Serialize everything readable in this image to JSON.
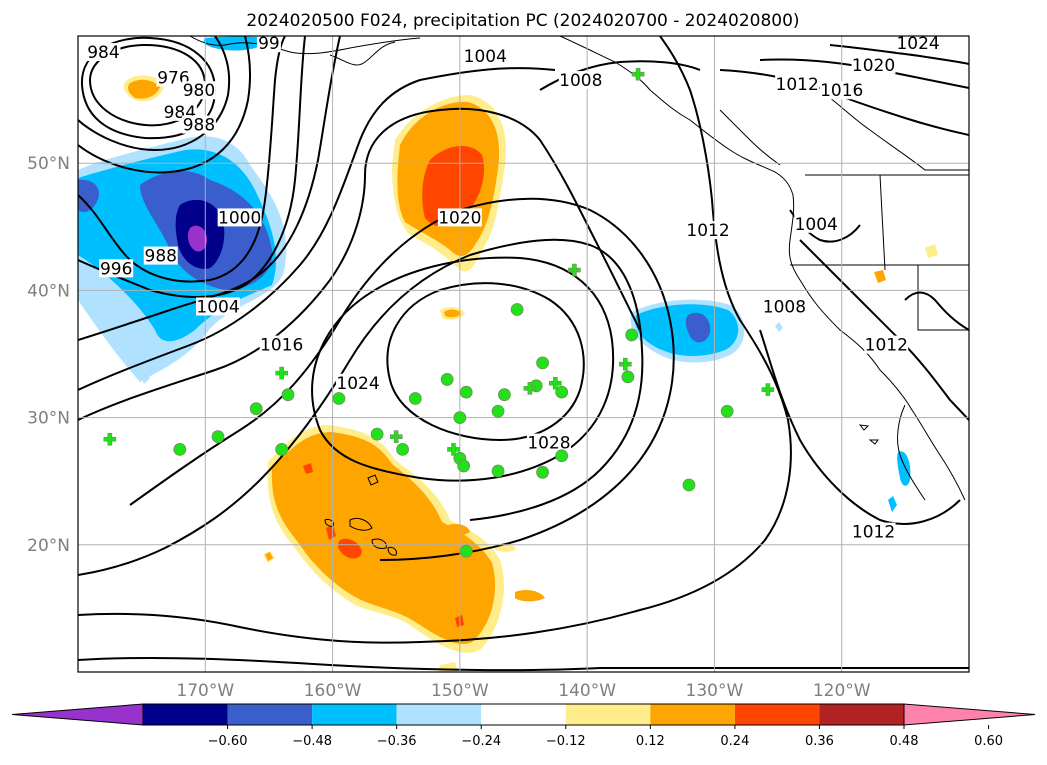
{
  "chart_data": {
    "type": "heatmap",
    "title": "2024020500 F024, precipitation PC (2024020700 - 2024020800)",
    "map": {
      "lon_range": [
        -180,
        -110
      ],
      "lat_range": [
        10,
        60
      ],
      "grid": true,
      "lon_ticks": [
        {
          "value": -170,
          "label": "170°W"
        },
        {
          "value": -160,
          "label": "160°W"
        },
        {
          "value": -150,
          "label": "150°W"
        },
        {
          "value": -140,
          "label": "140°W"
        },
        {
          "value": -130,
          "label": "130°W"
        },
        {
          "value": -120,
          "label": "120°W"
        }
      ],
      "lat_ticks": [
        {
          "value": 50,
          "label": "50°N"
        },
        {
          "value": 40,
          "label": "40°N"
        },
        {
          "value": 30,
          "label": "30°N"
        },
        {
          "value": 20,
          "label": "20°N"
        }
      ]
    },
    "colorbar": {
      "extend": "both",
      "levels": [
        -0.6,
        -0.48,
        -0.36,
        -0.24,
        -0.12,
        0.12,
        0.24,
        0.36,
        0.48,
        0.6
      ],
      "tick_labels": [
        "−0.60",
        "−0.48",
        "−0.36",
        "−0.24",
        "−0.12",
        "0.12",
        "0.24",
        "0.36",
        "0.48",
        "0.60"
      ],
      "colors": [
        "#9932cc",
        "#00008b",
        "#3a5fcd",
        "#00bfff",
        "#b0e2ff",
        "#ffffff",
        "#ffec8b",
        "#ffa500",
        "#ff4500",
        "#b22222",
        "#ff82ab"
      ]
    },
    "isobar_labels": [
      {
        "text": "984",
        "lon": -178,
        "lat": 58.5
      },
      {
        "text": "976",
        "lon": -172.5,
        "lat": 56.5
      },
      {
        "text": "980",
        "lon": -170.5,
        "lat": 55.5
      },
      {
        "text": "984",
        "lon": -172,
        "lat": 53.8
      },
      {
        "text": "988",
        "lon": -170.5,
        "lat": 52.8
      },
      {
        "text": "99",
        "lon": -165,
        "lat": 59.2
      },
      {
        "text": "1000",
        "lon": -167.3,
        "lat": 45.5
      },
      {
        "text": "996",
        "lon": -177,
        "lat": 41.5
      },
      {
        "text": "988",
        "lon": -173.5,
        "lat": 42.5
      },
      {
        "text": "1004",
        "lon": -169,
        "lat": 38.5
      },
      {
        "text": "1004",
        "lon": -148,
        "lat": 58.2
      },
      {
        "text": "1008",
        "lon": -140.5,
        "lat": 56.3
      },
      {
        "text": "1020",
        "lon": -150,
        "lat": 45.5
      },
      {
        "text": "1016",
        "lon": -164,
        "lat": 35.5
      },
      {
        "text": "1024",
        "lon": -158,
        "lat": 32.5
      },
      {
        "text": "1028",
        "lon": -143,
        "lat": 27.8
      },
      {
        "text": "1012",
        "lon": -130.5,
        "lat": 44.5
      },
      {
        "text": "1004",
        "lon": -122,
        "lat": 45
      },
      {
        "text": "1008",
        "lon": -124.5,
        "lat": 38.5
      },
      {
        "text": "1012",
        "lon": -116.5,
        "lat": 35.5
      },
      {
        "text": "1012",
        "lon": -117.5,
        "lat": 20.8
      },
      {
        "text": "1024",
        "lon": -114,
        "lat": 59.2
      },
      {
        "text": "1020",
        "lon": -117.5,
        "lat": 57.5
      },
      {
        "text": "1016",
        "lon": -120,
        "lat": 55.5
      },
      {
        "text": "1012",
        "lon": -123.5,
        "lat": 56
      }
    ],
    "stations_circle": [
      [
        -145.5,
        38.5
      ],
      [
        -151,
        33
      ],
      [
        -149.5,
        32
      ],
      [
        -146.5,
        31.8
      ],
      [
        -144,
        32.5
      ],
      [
        -143.5,
        34.3
      ],
      [
        -142,
        32
      ],
      [
        -147,
        30.5
      ],
      [
        -150,
        30
      ],
      [
        -153.5,
        31.5
      ],
      [
        -159.5,
        31.5
      ],
      [
        -163.5,
        31.8
      ],
      [
        -166,
        30.7
      ],
      [
        -169,
        28.5
      ],
      [
        -172,
        27.5
      ],
      [
        -164,
        27.5
      ],
      [
        -156.5,
        28.7
      ],
      [
        -154.5,
        27.5
      ],
      [
        -150,
        26.8
      ],
      [
        -149.7,
        26.2
      ],
      [
        -147,
        25.8
      ],
      [
        -143.5,
        25.7
      ],
      [
        -142,
        27
      ],
      [
        -136.8,
        33.2
      ],
      [
        -136.5,
        36.5
      ],
      [
        -132,
        24.7
      ],
      [
        -129,
        30.5
      ],
      [
        -149.5,
        19.5
      ]
    ],
    "stations_cross": [
      [
        -177.5,
        28.3
      ],
      [
        -164,
        33.5
      ],
      [
        -155,
        28.5
      ],
      [
        -150.5,
        27.5
      ],
      [
        -144.5,
        32.3
      ],
      [
        -142.5,
        32.7
      ],
      [
        -137,
        34.2
      ],
      [
        -141,
        41.6
      ],
      [
        -125.8,
        32.2
      ],
      [
        -136,
        57
      ]
    ]
  }
}
